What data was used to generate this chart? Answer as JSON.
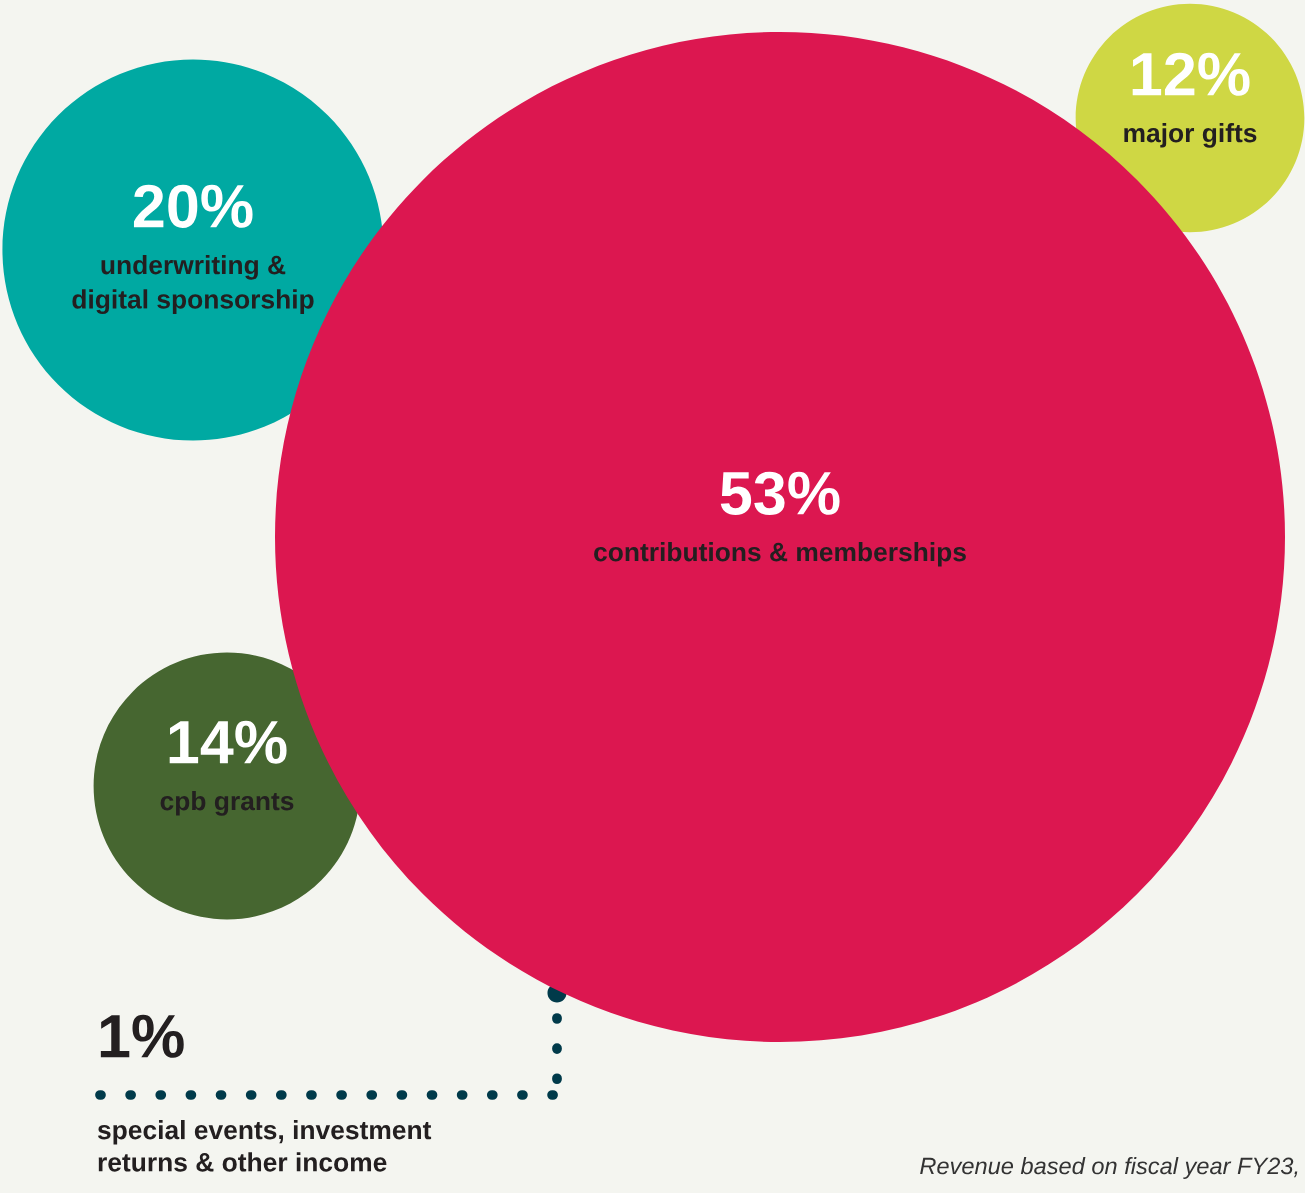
{
  "chart_data": {
    "type": "other",
    "categories": [
      "underwriting &\ndigital sponsorship",
      "major gifts",
      "contributions & memberships",
      "cpb grants",
      "special events, investment\nreturns & other income"
    ],
    "values": [
      20,
      12,
      53,
      14,
      1
    ],
    "value_labels": [
      "20%",
      "12%",
      "53%",
      "14%",
      "1%"
    ],
    "colors": [
      "#00a9a2",
      "#cfd744",
      "#dc1750",
      "#466630",
      "#003a4a"
    ],
    "annotations": [
      "Revenue based on fiscal year FY23,"
    ]
  }
}
